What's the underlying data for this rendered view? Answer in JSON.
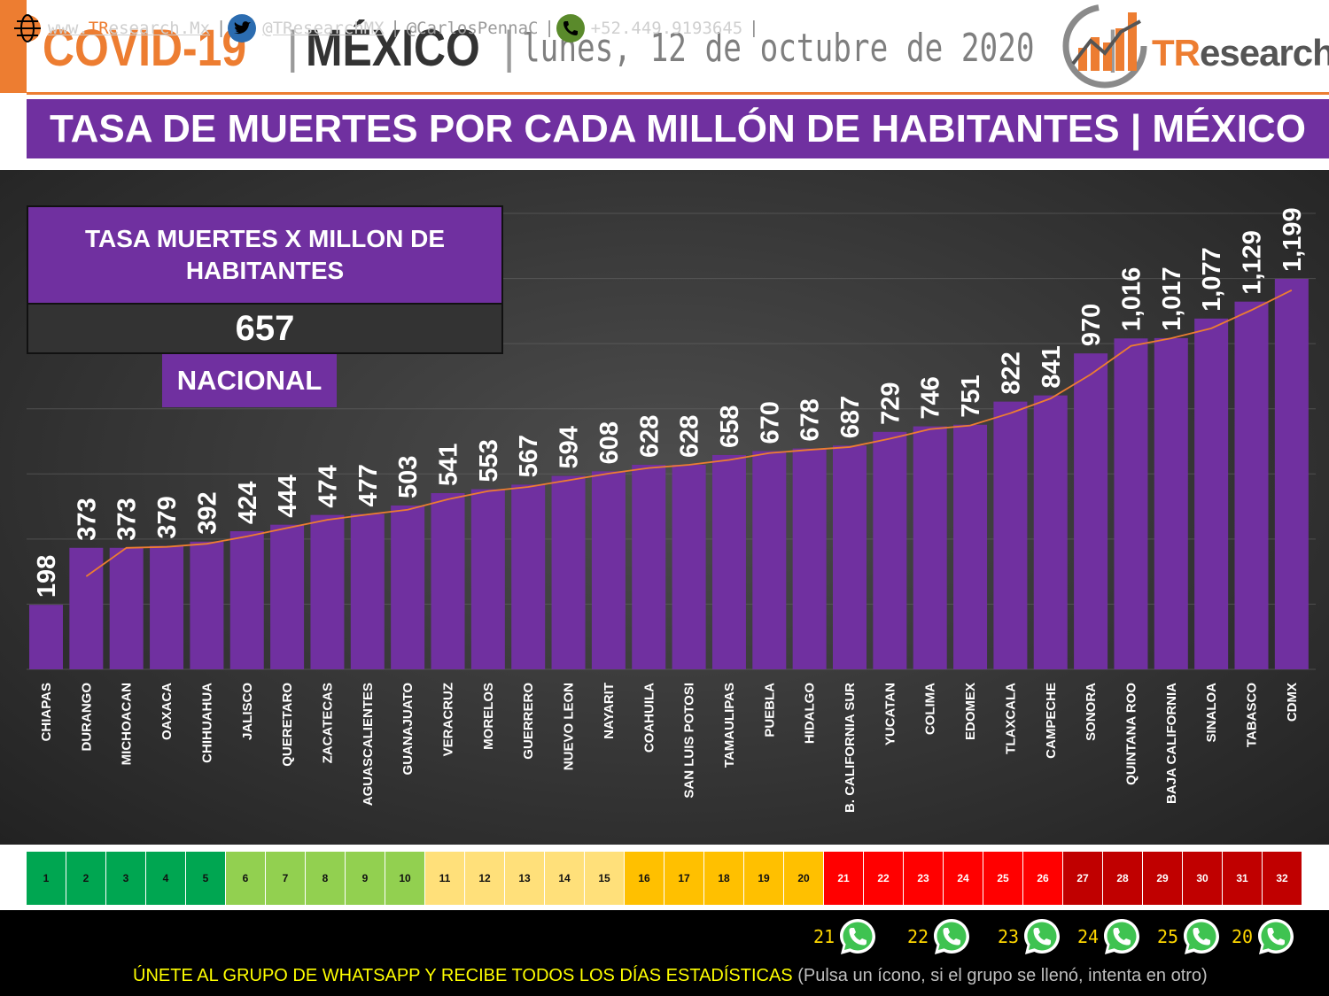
{
  "header": {
    "covid": "COVID-19",
    "separator": "|",
    "country": "MÉXICO",
    "date": "lunes, 12 de octubre de 2020",
    "trailing_separator": "|"
  },
  "logo": {
    "brand_accent": "TR",
    "brand_rest": "esearch"
  },
  "title": "TASA DE MUERTES POR CADA MILLÓN DE HABITANTES | MÉXICO",
  "kpi": {
    "title": "TASA MUERTES X MILLON DE HABITANTES",
    "value": "657",
    "label": "NACIONAL"
  },
  "colors": {
    "bar": "#7030a0",
    "trend": "#ed7d31",
    "accent": "#ed7d31",
    "panel": "#3a3a3a"
  },
  "chart_data": {
    "type": "bar",
    "title": "TASA DE MUERTES POR CADA MILLÓN DE HABITANTES | MÉXICO",
    "categories": [
      "CHIAPAS",
      "DURANGO",
      "MICHOACAN",
      "OAXACA",
      "CHIHUAHUA",
      "JALISCO",
      "QUERETARO",
      "ZACATECAS",
      "AGUASCALIENTES",
      "GUANAJUATO",
      "VERACRUZ",
      "MORELOS",
      "GUERRERO",
      "NUEVO LEON",
      "NAYARIT",
      "COAHUILA",
      "SAN LUIS POTOSI",
      "TAMAULIPAS",
      "PUEBLA",
      "HIDALGO",
      "B. CALIFORNIA SUR",
      "YUCATAN",
      "COLIMA",
      "EDOMEX",
      "TLAXCALA",
      "CAMPECHE",
      "SONORA",
      "QUINTANA ROO",
      "BAJA CALIFORNIA",
      "SINALOA",
      "TABASCO",
      "CDMX"
    ],
    "values": [
      198,
      373,
      373,
      379,
      392,
      424,
      444,
      474,
      477,
      503,
      541,
      553,
      567,
      594,
      608,
      628,
      628,
      658,
      670,
      678,
      687,
      729,
      746,
      751,
      822,
      841,
      970,
      1016,
      1017,
      1077,
      1129,
      1199
    ],
    "value_labels": [
      "198",
      "373",
      "373",
      "379",
      "392",
      "424",
      "444",
      "474",
      "477",
      "503",
      "541",
      "553",
      "567",
      "594",
      "608",
      "628",
      "628",
      "658",
      "670",
      "678",
      "687",
      "729",
      "746",
      "751",
      "822",
      "841",
      "970",
      "1,016",
      "1,017",
      "1,077",
      "1,129",
      "1,199"
    ],
    "trendline": "moving average (2 periods), orange",
    "ylim": [
      0,
      1400
    ],
    "grid": true,
    "legend": "none"
  },
  "scale": {
    "cells": [
      {
        "n": "1",
        "color": "#00a651"
      },
      {
        "n": "2",
        "color": "#00a651"
      },
      {
        "n": "3",
        "color": "#00a651"
      },
      {
        "n": "4",
        "color": "#00a651"
      },
      {
        "n": "5",
        "color": "#00a651"
      },
      {
        "n": "6",
        "color": "#92d050"
      },
      {
        "n": "7",
        "color": "#92d050"
      },
      {
        "n": "8",
        "color": "#92d050"
      },
      {
        "n": "9",
        "color": "#92d050"
      },
      {
        "n": "10",
        "color": "#92d050"
      },
      {
        "n": "11",
        "color": "#ffe07a"
      },
      {
        "n": "12",
        "color": "#ffe07a"
      },
      {
        "n": "13",
        "color": "#ffe07a"
      },
      {
        "n": "14",
        "color": "#ffe07a"
      },
      {
        "n": "15",
        "color": "#ffe07a"
      },
      {
        "n": "16",
        "color": "#ffc000"
      },
      {
        "n": "17",
        "color": "#ffc000"
      },
      {
        "n": "18",
        "color": "#ffc000"
      },
      {
        "n": "19",
        "color": "#ffc000"
      },
      {
        "n": "20",
        "color": "#ffc000"
      },
      {
        "n": "21",
        "color": "#ff0000"
      },
      {
        "n": "22",
        "color": "#ff0000"
      },
      {
        "n": "23",
        "color": "#ff0000"
      },
      {
        "n": "24",
        "color": "#ff0000"
      },
      {
        "n": "25",
        "color": "#ff0000"
      },
      {
        "n": "26",
        "color": "#ff0000"
      },
      {
        "n": "27",
        "color": "#c00000"
      },
      {
        "n": "28",
        "color": "#c00000"
      },
      {
        "n": "29",
        "color": "#c00000"
      },
      {
        "n": "30",
        "color": "#c00000"
      },
      {
        "n": "31",
        "color": "#c00000"
      },
      {
        "n": "32",
        "color": "#c00000"
      }
    ]
  },
  "footer": {
    "website_accent": "TR",
    "website_prefix": "www.",
    "website_rest": "esearch.Mx",
    "twitter": "@TResearchMX",
    "author": "@CarlosPennaC",
    "phone": "+52.449.9193645",
    "sep": "|",
    "whatsapp_groups": [
      "21",
      "22",
      "23",
      "24",
      "25",
      "20"
    ],
    "cta_main": "ÚNETE AL GRUPO DE WHATSAPP Y RECIBE TODOS LOS DÍAS ESTADÍSTICAS",
    "cta_note": "(Pulsa un ícono, si el grupo se llenó, intenta en otro)"
  }
}
